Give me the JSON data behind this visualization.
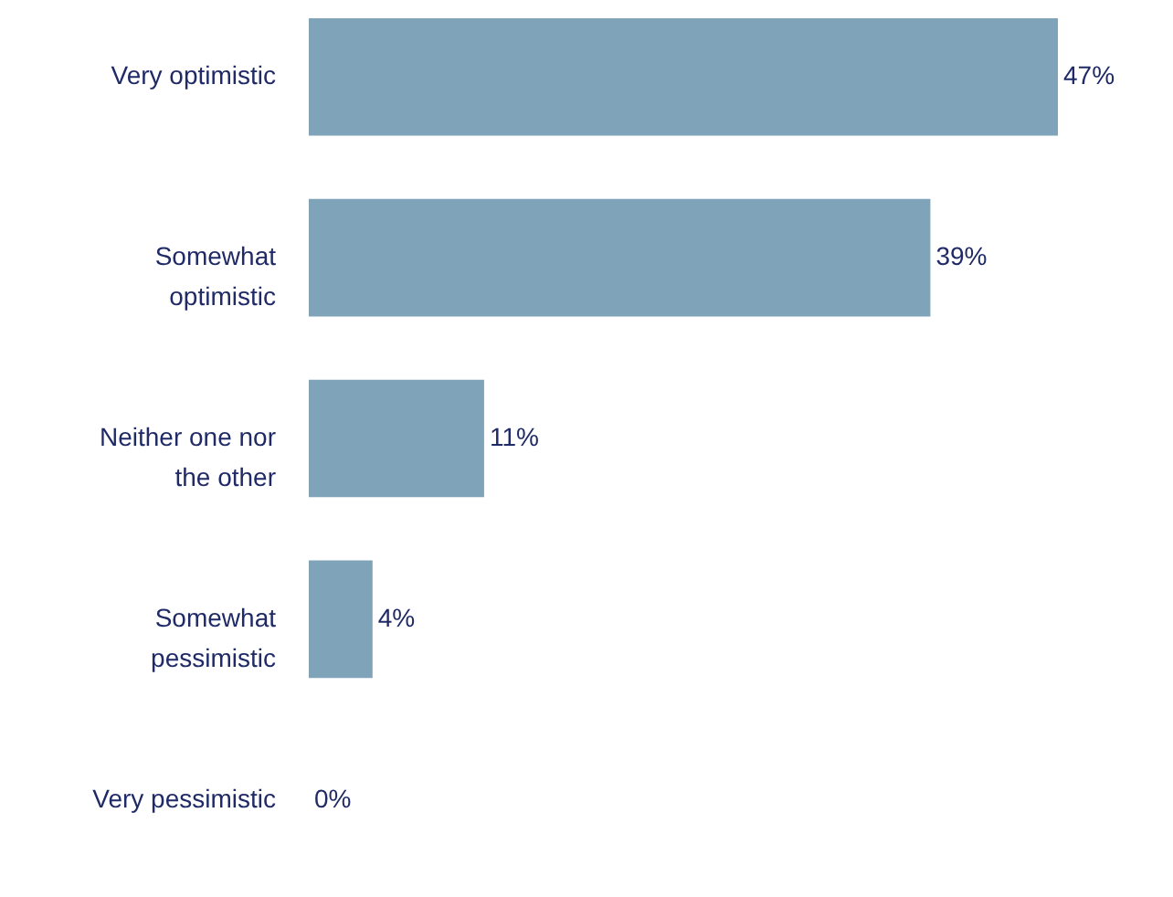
{
  "chart_data": {
    "type": "bar",
    "orientation": "horizontal",
    "categories": [
      "Very optimistic",
      "Somewhat optimistic",
      "Neither one nor the other",
      "Somewhat pessimistic",
      "Very pessimistic"
    ],
    "values": [
      47,
      39,
      11,
      4,
      0
    ],
    "value_labels": [
      "47%",
      "39%",
      "11%",
      "4%",
      "0%"
    ],
    "color": "#7fa3b8"
  }
}
